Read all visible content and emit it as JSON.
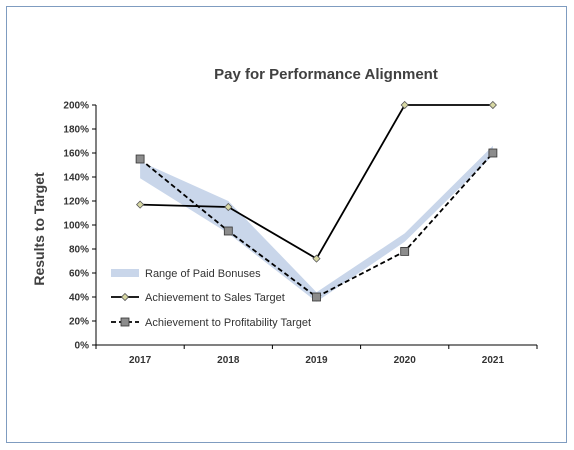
{
  "chart_data": {
    "type": "line",
    "title": "Pay for Performance Alignment",
    "ylabel": "Results to Target",
    "xlabel": "",
    "categories": [
      "2017",
      "2018",
      "2019",
      "2020",
      "2021"
    ],
    "ylim": [
      0,
      200
    ],
    "yticks": [
      0,
      20,
      40,
      60,
      80,
      100,
      120,
      140,
      160,
      180,
      200
    ],
    "ytick_labels": [
      "0%",
      "20%",
      "40%",
      "60%",
      "80%",
      "100%",
      "120%",
      "140%",
      "160%",
      "180%",
      "200%"
    ],
    "grid": false,
    "legend_position": "bottom-left",
    "band": {
      "name": "Range of Paid Bonuses",
      "color": "#c9d6ea",
      "lower": [
        139,
        93,
        36,
        86,
        158
      ],
      "upper": [
        153,
        120,
        44,
        93,
        166
      ]
    },
    "series": [
      {
        "name": "Achievement to Sales Target",
        "values": [
          117,
          115,
          72,
          200,
          200
        ],
        "color": "#000000",
        "dash": "solid",
        "marker": "diamond",
        "marker_color": "#d8d8a4"
      },
      {
        "name": "Achievement to Profitability Target",
        "values": [
          155,
          95,
          40,
          78,
          160
        ],
        "color": "#000000",
        "dash": "dashed",
        "marker": "square",
        "marker_color": "#8c8c8c"
      }
    ]
  }
}
